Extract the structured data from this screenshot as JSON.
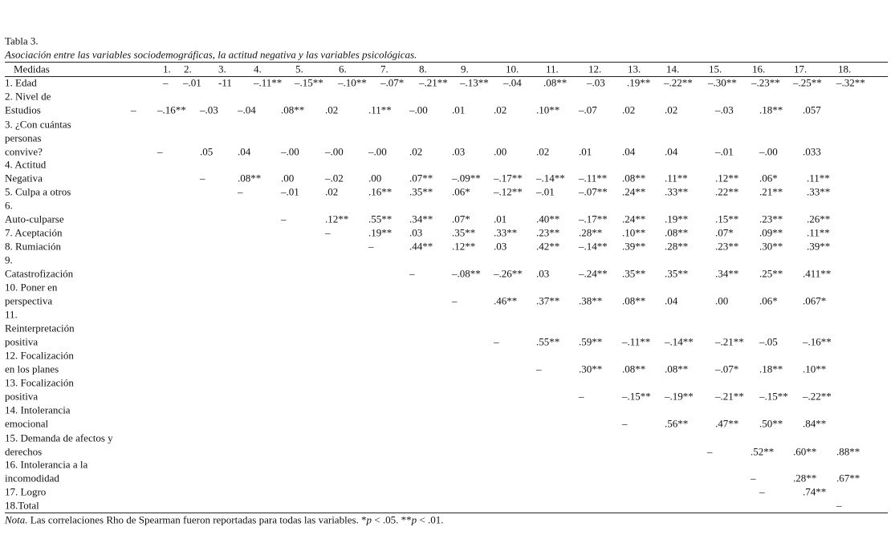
{
  "header": {
    "title": "Tabla 3.",
    "subtitle": "Asociación entre las variables sociodemográficas, la actitud negativa y las variables psicológicas."
  },
  "table": {
    "columns": [
      "Medidas",
      "1.",
      "2.",
      "3.",
      "4.",
      "5.",
      "6.",
      "7.",
      "8.",
      "9.",
      "10.",
      "11.",
      "12.",
      "13.",
      "14.",
      "15.",
      "16.",
      "17.",
      "18."
    ],
    "rows": [
      {
        "label": [
          "1. Edad"
        ],
        "cells": [
          "–",
          "–.01",
          "-11",
          "–.11**",
          "–.15**",
          "–.10**",
          "–.07*",
          "–.21**",
          "–.13**",
          "–.04",
          ".08**",
          "–.03",
          ".19**",
          "–.22**",
          "–.30**",
          "–.23**",
          "–.25**",
          "–.32**"
        ]
      },
      {
        "label": [
          "2. Nivel de",
          "Estudios"
        ],
        "cells": [
          "–",
          "–.16**",
          "–.03",
          "–.04",
          ".08**",
          ".02",
          ".11**",
          "–.00",
          ".01",
          ".02",
          ".10**",
          "–.07",
          ".02",
          ".02",
          "–.03",
          ".18**",
          ".057"
        ]
      },
      {
        "label": [
          "3. ¿Con cuántas",
          "personas",
          "convive?"
        ],
        "cells": [
          "–",
          ".05",
          ".04",
          "–.00",
          "–.00",
          "–.00",
          ".02",
          ".03",
          ".00",
          ".02",
          ".01",
          ".04",
          ".04",
          "–.01",
          "–.00",
          ".033"
        ]
      },
      {
        "label": [
          "4. Actitud",
          "Negativa"
        ],
        "cells": [
          "–",
          ".08**",
          ".00",
          "–.02",
          ".00",
          ".07**",
          "–.09**",
          "–.17**",
          "–.14**",
          "–.11**",
          ".08**",
          ".11**",
          ".12**",
          ".06*",
          ".11**"
        ]
      },
      {
        "label": [
          "5. Culpa a otros"
        ],
        "cells": [
          "–",
          "–.01",
          ".02",
          ".16**",
          ".35**",
          ".06*",
          "–.12**",
          "–.01",
          "–.07**",
          ".24**",
          ".33**",
          ".22**",
          ".21**",
          ".33**"
        ]
      },
      {
        "label": [
          "6.",
          "Auto-culparse"
        ],
        "cells": [
          "–",
          ".12**",
          ".55**",
          ".34**",
          ".07*",
          ".01",
          ".40**",
          "–.17**",
          ".24**",
          ".19**",
          ".15**",
          ".23**",
          ".26**"
        ]
      },
      {
        "label": [
          "7. Aceptación"
        ],
        "cells": [
          "–",
          ".19**",
          ".03",
          ".35**",
          ".33**",
          ".23**",
          ".28**",
          ".10**",
          ".08**",
          ".07*",
          ".09**",
          ".11**"
        ]
      },
      {
        "label": [
          "8. Rumiación"
        ],
        "cells": [
          "–",
          ".44**",
          ".12**",
          ".03",
          ".42**",
          "–.14**",
          ".39**",
          ".28**",
          ".23**",
          ".30**",
          ".39**"
        ]
      },
      {
        "label": [
          "9.",
          "Catastrofización"
        ],
        "cells": [
          "–",
          "–.08**",
          "–.26**",
          ".03",
          "–.24**",
          ".35**",
          ".35**",
          ".34**",
          ".25**",
          ".411**"
        ]
      },
      {
        "label": [
          "10. Poner en",
          "perspectiva"
        ],
        "cells": [
          "–",
          ".46**",
          ".37**",
          ".38**",
          ".08**",
          ".04",
          ".00",
          ".06*",
          ".067*"
        ]
      },
      {
        "label": [
          "11.",
          "Reinterpretación",
          "positiva"
        ],
        "cells": [
          "–",
          ".55**",
          ".59**",
          "–.11**",
          "–.14**",
          "–.21**",
          "–.05",
          "–.16**"
        ]
      },
      {
        "label": [
          "12. Focalización",
          "en los planes"
        ],
        "cells": [
          "–",
          ".30**",
          ".08**",
          ".08**",
          "–.07*",
          ".18**",
          ".10**"
        ]
      },
      {
        "label": [
          "13. Focalización",
          "positiva"
        ],
        "cells": [
          "–",
          "–.15**",
          "–.19**",
          "–.21**",
          "–.15**",
          "–.22**"
        ]
      },
      {
        "label": [
          "14. Intolerancia",
          "emocional"
        ],
        "cells": [
          "–",
          ".56**",
          ".47**",
          ".50**",
          ".84**"
        ]
      },
      {
        "label": [
          "15. Demanda de afectos y",
          "derechos"
        ],
        "cells": [
          "–",
          ".52**",
          ".60**",
          ".88**"
        ]
      },
      {
        "label": [
          "16. Intolerancia a la",
          "incomodidad"
        ],
        "cells": [
          "–",
          ".28**",
          ".67**"
        ]
      },
      {
        "label": [
          "17. Logro"
        ],
        "cells": [
          "–",
          ".74**"
        ]
      },
      {
        "label": [
          "18.Total"
        ],
        "cells": [
          "–"
        ]
      }
    ]
  },
  "note": [
    "Nota.",
    "Las correlaciones Rho de Spearman fueron reportadas para todas las variables. *",
    "p",
    "< .05. **",
    "p",
    "< .01."
  ]
}
